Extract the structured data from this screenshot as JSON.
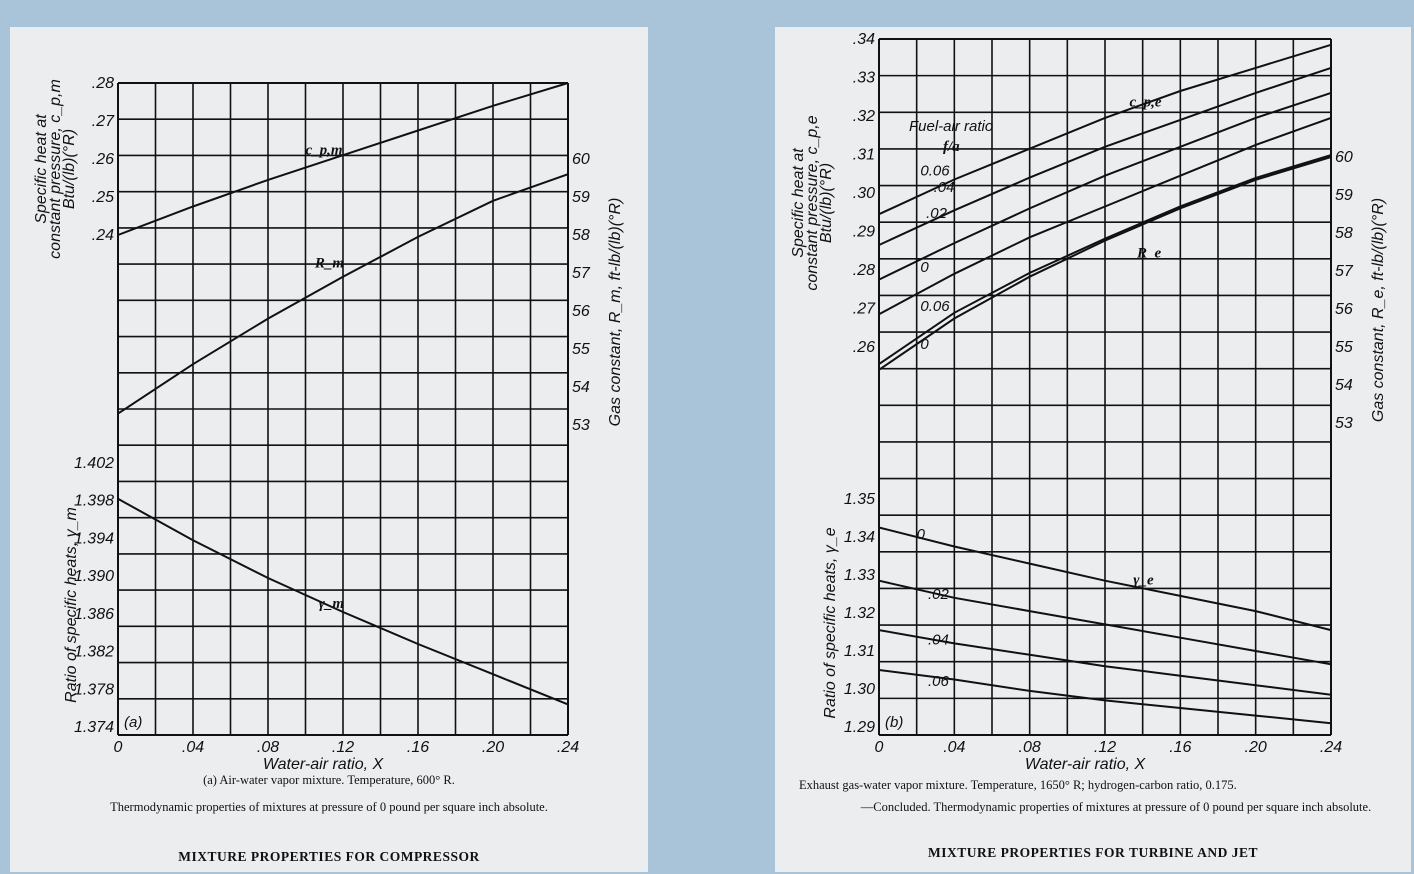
{
  "colors": {
    "background": "#a9c3d9",
    "paper": "#ecedef",
    "ink": "#111111"
  },
  "chart_data": [
    {
      "type": "line",
      "panel_label": "(a)",
      "xlabel": "Water-air ratio, X",
      "x_ticks": [
        "0",
        ".04",
        ".08",
        ".12",
        ".16",
        ".20",
        ".24"
      ],
      "xlim": [
        0,
        0.24
      ],
      "left_upper_axis": {
        "label_lines": [
          "Specific heat at",
          "constant pressure, c_p,m",
          "Btu/(lb)(°R)"
        ],
        "ticks": [
          ".24",
          ".25",
          ".26",
          ".27",
          ".28"
        ],
        "range": [
          0.24,
          0.28
        ]
      },
      "right_axis": {
        "label": "Gas constant, R_m, ft-lb/(lb)(°R)",
        "ticks": [
          "53",
          "54",
          "55",
          "56",
          "57",
          "58",
          "59",
          "60"
        ],
        "range": [
          53,
          60
        ]
      },
      "left_lower_axis": {
        "label": "Ratio of specific heats, γ_m",
        "ticks": [
          "1.374",
          "1.378",
          "1.382",
          "1.386",
          "1.390",
          "1.394",
          "1.398",
          "1.402"
        ],
        "range": [
          1.374,
          1.402
        ]
      },
      "series": [
        {
          "name": "c_p,m",
          "axis": "left_upper",
          "x": [
            0,
            0.04,
            0.08,
            0.12,
            0.16,
            0.2,
            0.24
          ],
          "y": [
            0.24,
            0.2475,
            0.2545,
            0.261,
            0.2675,
            0.274,
            0.28
          ]
        },
        {
          "name": "R_m",
          "axis": "right",
          "x": [
            0,
            0.04,
            0.08,
            0.12,
            0.16,
            0.2,
            0.24
          ],
          "y": [
            53.3,
            54.6,
            55.8,
            56.9,
            57.95,
            58.9,
            59.6
          ]
        },
        {
          "name": "γ_m",
          "axis": "left_lower",
          "x": [
            0,
            0.04,
            0.08,
            0.12,
            0.16,
            0.2,
            0.24
          ],
          "y": [
            1.3982,
            1.3938,
            1.3898,
            1.3862,
            1.3828,
            1.3796,
            1.3764
          ]
        }
      ],
      "captions": [
        "(a) Air-water vapor mixture.   Temperature, 600° R.",
        "Thermodynamic properties of mixtures at pressure of 0 pound per square inch absolute.",
        "MIXTURE PROPERTIES FOR COMPRESSOR"
      ]
    },
    {
      "type": "line",
      "panel_label": "(b)",
      "xlabel": "Water-air ratio, X",
      "x_ticks": [
        "0",
        ".04",
        ".08",
        ".12",
        ".16",
        ".20",
        ".24"
      ],
      "xlim": [
        0,
        0.24
      ],
      "legend_title": [
        "Fuel-air ratio",
        "f/a"
      ],
      "left_upper_axis": {
        "label_lines": [
          "Specific heat at",
          "constant pressure, c_p,e",
          "Btu/(lb)(°R)"
        ],
        "ticks": [
          ".26",
          ".27",
          ".28",
          ".29",
          ".30",
          ".31",
          ".32",
          ".33",
          ".34"
        ],
        "range": [
          0.26,
          0.34
        ]
      },
      "right_axis": {
        "label": "Gas constant, R_e, ft-lb/(lb)(°R)",
        "ticks": [
          "53",
          "54",
          "55",
          "56",
          "57",
          "58",
          "59",
          "60"
        ],
        "range": [
          53,
          60
        ]
      },
      "left_lower_axis": {
        "label": "Ratio of specific heats, γ_e",
        "ticks": [
          "1.29",
          "1.30",
          "1.31",
          "1.32",
          "1.33",
          "1.34",
          "1.35"
        ],
        "range": [
          1.29,
          1.35
        ]
      },
      "curve_names": {
        "cp": "c_p,e",
        "R": "R_e",
        "gamma": "γ_e"
      },
      "series": [
        {
          "name": "0.06",
          "axis": "left_upper",
          "x": [
            0,
            0.04,
            0.08,
            0.12,
            0.16,
            0.2,
            0.24
          ],
          "y": [
            0.2945,
            0.3035,
            0.3115,
            0.3195,
            0.3265,
            0.3325,
            0.3385
          ]
        },
        {
          "name": ".04",
          "axis": "left_upper",
          "x": [
            0,
            0.04,
            0.08,
            0.12,
            0.16,
            0.2,
            0.24
          ],
          "y": [
            0.2865,
            0.2955,
            0.304,
            0.312,
            0.319,
            0.326,
            0.3325
          ]
        },
        {
          "name": ".02",
          "axis": "left_upper",
          "x": [
            0,
            0.04,
            0.08,
            0.12,
            0.16,
            0.2,
            0.24
          ],
          "y": [
            0.2775,
            0.287,
            0.296,
            0.3045,
            0.312,
            0.3195,
            0.326
          ]
        },
        {
          "name": "0",
          "axis": "left_upper",
          "x": [
            0,
            0.04,
            0.08,
            0.12,
            0.16,
            0.2,
            0.24
          ],
          "y": [
            0.2685,
            0.279,
            0.2885,
            0.2965,
            0.3045,
            0.3125,
            0.3195
          ]
        },
        {
          "name": "0.06",
          "axis": "right",
          "x": [
            0,
            0.04,
            0.08,
            0.12,
            0.16,
            0.2,
            0.24
          ],
          "y": [
            54.55,
            55.9,
            56.95,
            57.85,
            58.7,
            59.45,
            60.05
          ]
        },
        {
          "name": "0",
          "axis": "right",
          "x": [
            0,
            0.04,
            0.08,
            0.12,
            0.16,
            0.2,
            0.24
          ],
          "y": [
            54.4,
            55.75,
            56.85,
            57.8,
            58.65,
            59.4,
            60.0
          ]
        },
        {
          "name": "0",
          "axis": "left_lower",
          "x": [
            0,
            0.04,
            0.08,
            0.12,
            0.16,
            0.2,
            0.24
          ],
          "y": [
            1.3425,
            1.3375,
            1.333,
            1.3285,
            1.3245,
            1.3205,
            1.3155
          ]
        },
        {
          "name": ".02",
          "axis": "left_lower",
          "x": [
            0,
            0.04,
            0.08,
            0.12,
            0.16,
            0.2,
            0.24
          ],
          "y": [
            1.3285,
            1.324,
            1.3205,
            1.317,
            1.3135,
            1.31,
            1.3065
          ]
        },
        {
          "name": ".04",
          "axis": "left_lower",
          "x": [
            0,
            0.04,
            0.08,
            0.12,
            0.16,
            0.2,
            0.24
          ],
          "y": [
            1.3155,
            1.312,
            1.309,
            1.306,
            1.3035,
            1.301,
            1.2985
          ]
        },
        {
          "name": ".06",
          "axis": "left_lower",
          "x": [
            0,
            0.04,
            0.08,
            0.12,
            0.16,
            0.2,
            0.24
          ],
          "y": [
            1.305,
            1.3025,
            1.2995,
            1.297,
            1.295,
            1.293,
            1.291
          ]
        }
      ],
      "captions": [
        "Exhaust gas-water vapor mixture.   Temperature, 1650° R; hydrogen-carbon ratio, 0.175.",
        "—Concluded.   Thermodynamic properties of mixtures at pressure of 0 pound per square inch absolute.",
        "MIXTURE PROPERTIES FOR TURBINE AND JET"
      ]
    }
  ]
}
